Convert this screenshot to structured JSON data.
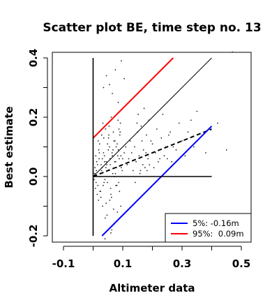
{
  "chart_data": {
    "type": "scatter",
    "title": "Scatter plot BE, time step no. 13",
    "xlabel": "Altimeter data",
    "ylabel": "Best estimate",
    "xlim": [
      -0.15,
      0.52
    ],
    "ylim": [
      -0.22,
      0.42
    ],
    "xticks": [
      "-0.1",
      "0.1",
      "0.3",
      "0.5"
    ],
    "yticks": [
      "-0.2",
      "0.0",
      "0.2",
      "0.4"
    ],
    "grid": false,
    "legend_position": "bottom-right",
    "legend": [
      {
        "label": "5%: -0.16m",
        "color": "#0000ff"
      },
      {
        "label": "95%:  0.09m",
        "color": "#ff0000"
      }
    ],
    "lines": [
      {
        "role": "diagonal",
        "color": "#000000",
        "style": "solid",
        "x": [
          0.0,
          0.4
        ],
        "y": [
          0.0,
          0.4
        ]
      },
      {
        "role": "regression",
        "color": "#000000",
        "style": "dashed",
        "x": [
          0.0,
          0.4
        ],
        "y": [
          0.0,
          0.16
        ]
      },
      {
        "role": "upper 95%",
        "color": "#ff0000",
        "style": "solid",
        "x": [
          0.0,
          0.27
        ],
        "y": [
          0.13,
          0.4
        ]
      },
      {
        "role": "lower 5%",
        "color": "#0000ff",
        "style": "solid",
        "x": [
          0.03,
          0.4
        ],
        "y": [
          -0.2,
          0.17
        ]
      },
      {
        "role": "zero horizontal",
        "color": "#000000",
        "style": "solid",
        "x": [
          0.0,
          0.4
        ],
        "y": [
          0.0,
          0.0
        ]
      },
      {
        "role": "zero vertical",
        "color": "#000000",
        "style": "solid",
        "x": [
          0.0,
          0.0
        ],
        "y": [
          -0.2,
          0.4
        ]
      }
    ],
    "points": {
      "x": [
        0.005,
        0.01,
        0.015,
        0.02,
        0.025,
        0.03,
        0.035,
        0.04,
        0.045,
        0.05,
        0.055,
        0.06,
        0.065,
        0.07,
        0.075,
        0.08,
        0.085,
        0.09,
        0.095,
        0.1,
        0.008,
        0.012,
        0.018,
        0.022,
        0.028,
        0.032,
        0.038,
        0.042,
        0.048,
        0.052,
        0.058,
        0.062,
        0.068,
        0.072,
        0.078,
        0.082,
        0.088,
        0.092,
        0.098,
        0.105,
        0.006,
        0.014,
        0.019,
        0.024,
        0.029,
        0.034,
        0.039,
        0.044,
        0.049,
        0.054,
        0.059,
        0.064,
        0.069,
        0.074,
        0.079,
        0.084,
        0.089,
        0.094,
        0.11,
        0.115,
        0.003,
        0.011,
        0.016,
        0.021,
        0.026,
        0.031,
        0.036,
        0.041,
        0.046,
        0.051,
        0.056,
        0.061,
        0.066,
        0.071,
        0.076,
        0.081,
        0.086,
        0.091,
        0.12,
        0.125,
        0.004,
        0.009,
        0.017,
        0.023,
        0.027,
        0.033,
        0.037,
        0.043,
        0.047,
        0.053,
        0.057,
        0.063,
        0.067,
        0.073,
        0.077,
        0.083,
        0.087,
        0.093,
        0.13,
        0.135,
        0.14,
        0.145,
        0.15,
        0.155,
        0.16,
        0.165,
        0.17,
        0.175,
        0.18,
        0.185,
        0.19,
        0.2,
        0.21,
        0.22,
        0.23,
        0.24,
        0.25,
        0.26,
        0.27,
        0.28,
        0.142,
        0.148,
        0.152,
        0.158,
        0.162,
        0.168,
        0.172,
        0.178,
        0.182,
        0.188,
        0.195,
        0.205,
        0.215,
        0.225,
        0.235,
        0.245,
        0.255,
        0.265,
        0.29,
        0.3,
        0.31,
        0.32,
        0.33,
        0.34,
        0.35,
        0.36,
        0.38,
        0.42,
        0.45,
        0.47,
        0.035,
        0.045,
        0.055,
        0.065,
        0.075,
        0.085,
        0.095,
        0.105,
        0.04,
        0.06
      ],
      "y": [
        0.01,
        -0.02,
        0.04,
        0.06,
        -0.05,
        0.03,
        0.08,
        -0.01,
        0.05,
        0.02,
        0.1,
        -0.06,
        0.07,
        0.12,
        0.01,
        -0.03,
        0.09,
        0.14,
        0.03,
        0.06,
        -0.04,
        0.05,
        -0.08,
        0.11,
        0.02,
        -0.1,
        0.07,
        0.16,
        -0.02,
        0.13,
        0.04,
        -0.07,
        0.15,
        0.0,
        0.1,
        -0.12,
        0.06,
        0.18,
        0.02,
        0.08,
        0.03,
        -0.06,
        0.09,
        0.0,
        0.14,
        -0.03,
        0.05,
        -0.09,
        0.11,
        0.17,
        -0.04,
        0.08,
        -0.11,
        0.12,
        0.03,
        0.19,
        -0.05,
        0.07,
        0.1,
        0.04,
        -0.01,
        0.02,
        -0.03,
        0.08,
        -0.07,
        0.06,
        0.13,
        -0.14,
        0.04,
        0.09,
        -0.08,
        0.2,
        0.01,
        -0.16,
        0.05,
        0.11,
        -0.02,
        0.15,
        0.06,
        0.12,
        0.0,
        0.07,
        0.12,
        -0.05,
        0.04,
        0.18,
        -0.02,
        0.03,
        -0.13,
        0.14,
        0.06,
        -0.18,
        0.09,
        0.05,
        -0.03,
        0.07,
        0.16,
        -0.1,
        0.08,
        0.02,
        0.1,
        0.05,
        0.15,
        0.07,
        0.02,
        0.12,
        0.09,
        0.03,
        0.14,
        0.06,
        0.04,
        0.11,
        0.08,
        0.05,
        0.13,
        0.07,
        0.06,
        0.15,
        0.1,
        0.09,
        -0.02,
        0.18,
        0.21,
        0.01,
        0.17,
        0.04,
        0.23,
        0.08,
        0.02,
        0.19,
        0.12,
        0.03,
        0.16,
        0.06,
        0.21,
        0.1,
        0.14,
        0.05,
        0.18,
        0.12,
        0.07,
        0.15,
        0.19,
        0.1,
        0.22,
        0.13,
        0.08,
        0.18,
        0.09,
        0.42,
        0.3,
        0.34,
        0.31,
        0.28,
        0.36,
        0.25,
        0.39,
        0.33,
        -0.21,
        -0.19
      ]
    }
  }
}
